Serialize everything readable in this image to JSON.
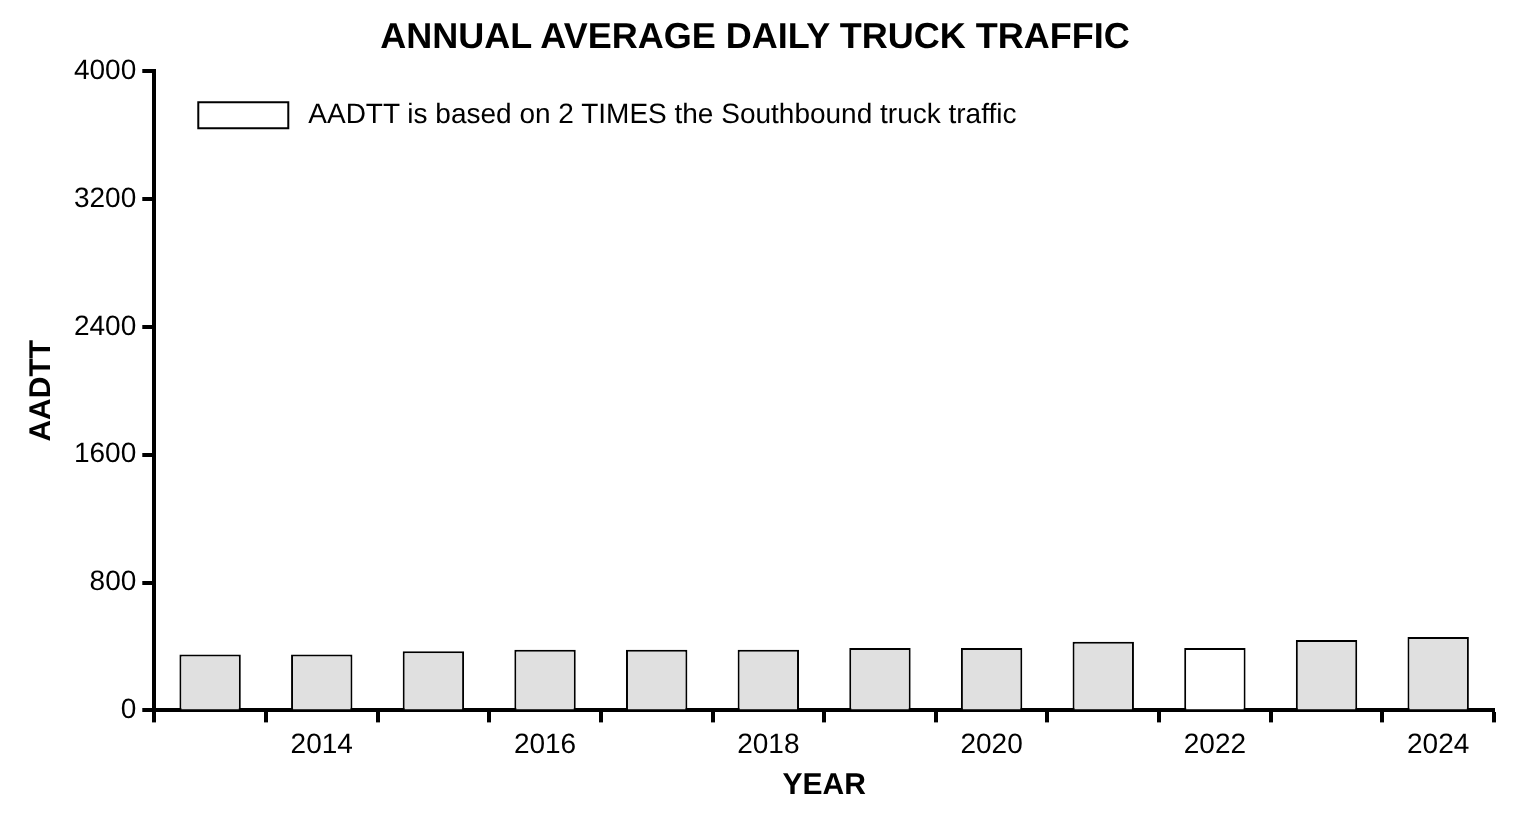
{
  "chart_data": {
    "type": "bar",
    "title": "ANNUAL AVERAGE DAILY TRUCK TRAFFIC",
    "xlabel": "YEAR",
    "ylabel": "AADTT",
    "categories": [
      null,
      "2014",
      null,
      "2016",
      null,
      "2018",
      null,
      "2020",
      null,
      "2022",
      null,
      "2024"
    ],
    "series": [
      {
        "color": "#e0e0e0",
        "values": [
          350,
          350,
          370,
          380,
          380,
          380,
          390,
          390,
          430,
          null,
          440,
          460
        ]
      },
      {
        "name": "AADTT is based on 2 TIMES the Southbound truck traffic",
        "color": "#ffffff",
        "values": [
          null,
          null,
          null,
          null,
          null,
          null,
          null,
          null,
          null,
          390,
          null,
          null
        ]
      }
    ],
    "ylim": [
      0,
      4000
    ],
    "yticks": [
      0,
      800,
      1600,
      2400,
      3200,
      4000
    ],
    "grid": false,
    "legend": "top left"
  }
}
